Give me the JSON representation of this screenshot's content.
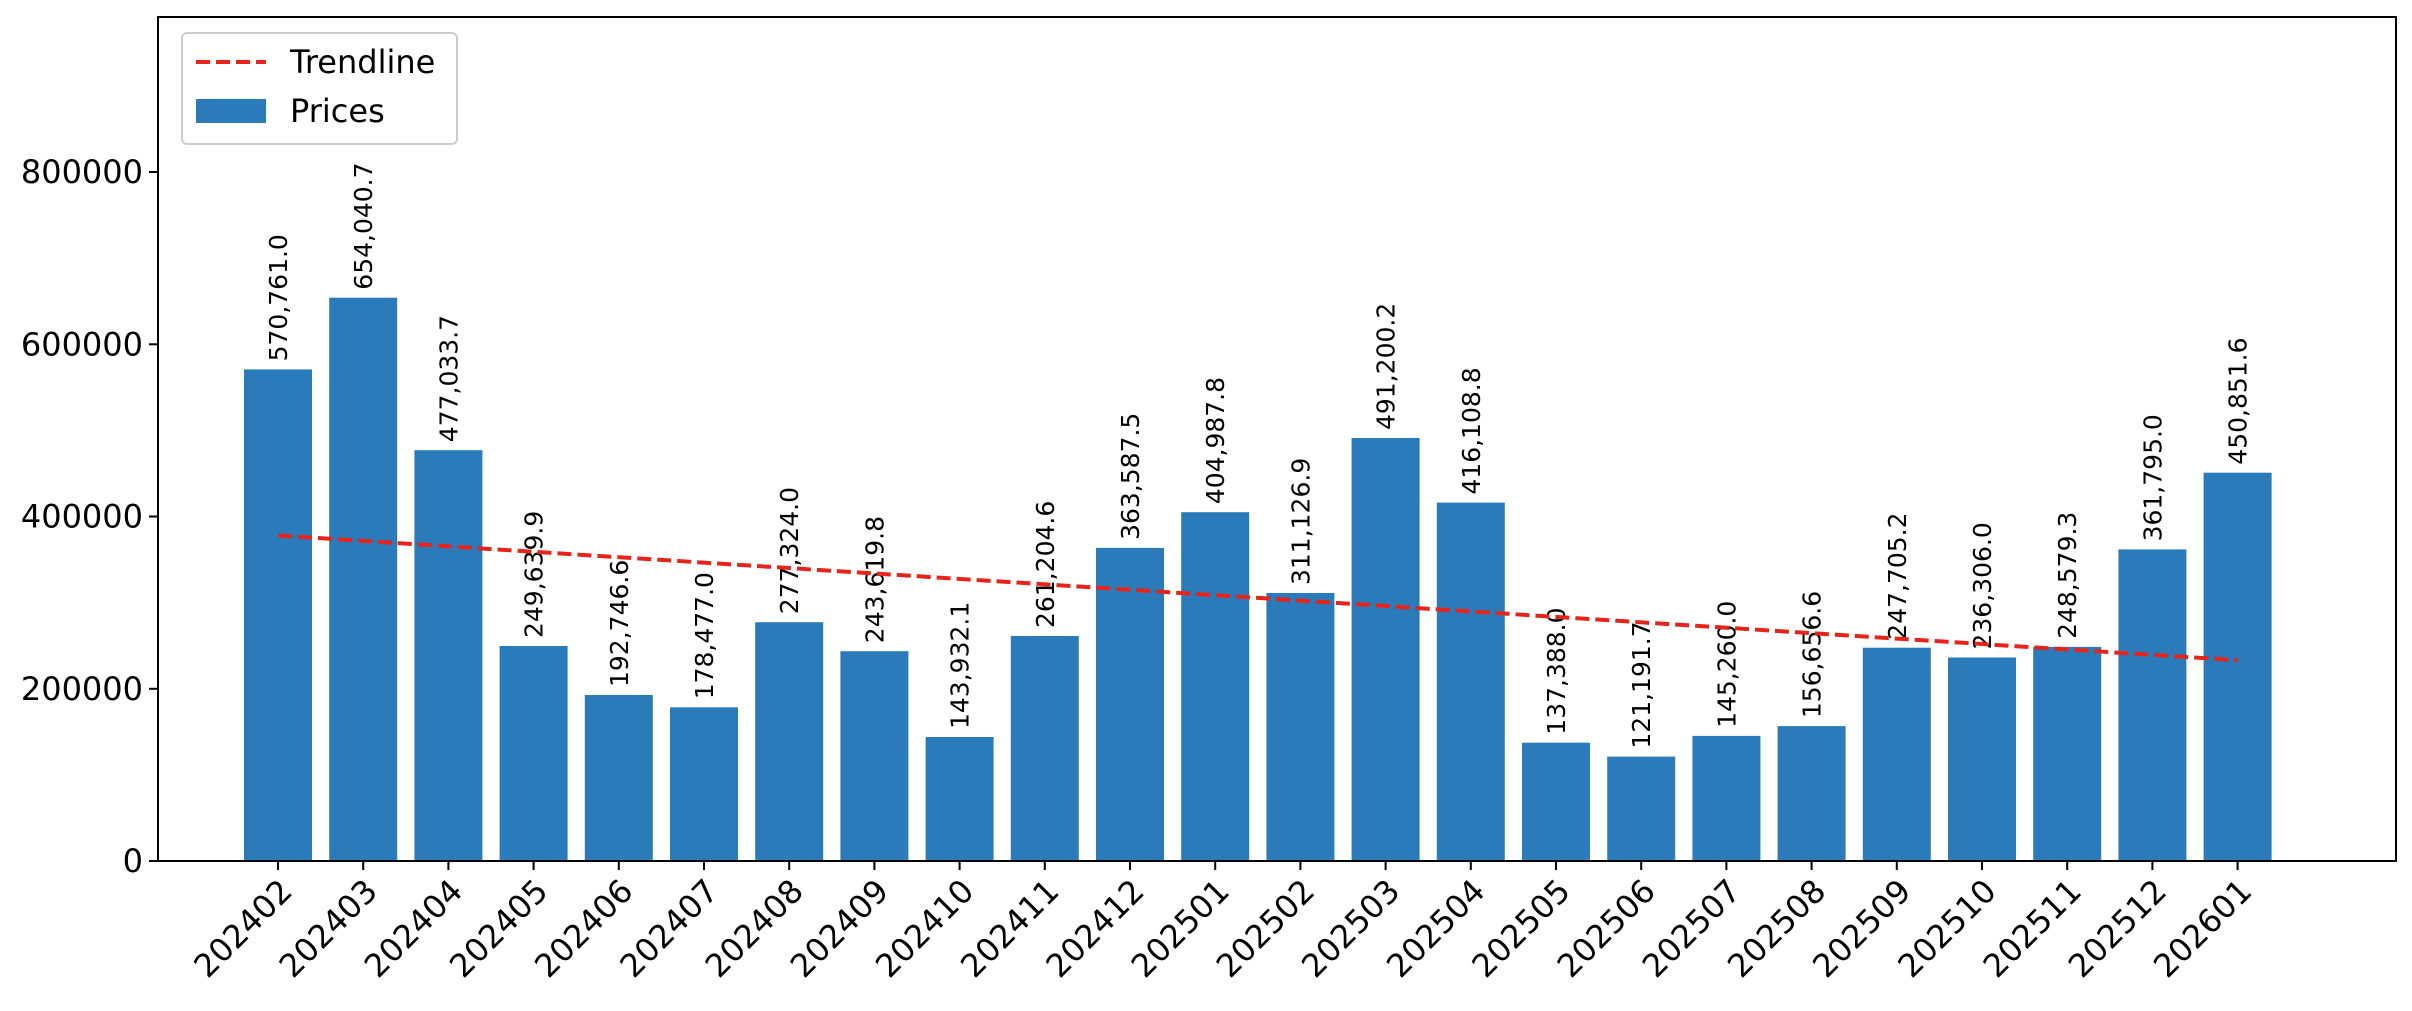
{
  "chart_data": {
    "type": "bar",
    "title": "",
    "xlabel": "",
    "ylabel": "",
    "categories": [
      "202402",
      "202403",
      "202404",
      "202405",
      "202406",
      "202407",
      "202408",
      "202409",
      "202410",
      "202411",
      "202412",
      "202501",
      "202502",
      "202503",
      "202504",
      "202505",
      "202506",
      "202507",
      "202508",
      "202509",
      "202510",
      "202511",
      "202512",
      "202601"
    ],
    "series": [
      {
        "name": "Prices",
        "type": "bar",
        "color": "#2b7bba",
        "values": [
          570761.0,
          654040.7,
          477033.7,
          249639.9,
          192746.6,
          178477.0,
          277324.0,
          243619.8,
          143932.1,
          261204.6,
          363587.5,
          404987.8,
          311126.9,
          491200.2,
          416108.8,
          137388.0,
          121191.7,
          145260.0,
          156656.6,
          247705.2,
          236306.0,
          248579.3,
          361795.0,
          450851.6
        ],
        "data_labels": [
          "570,761.0",
          "654,040.7",
          "477,033.7",
          "249,639.9",
          "192,746.6",
          "178,477.0",
          "277,324.0",
          "243,619.8",
          "143,932.1",
          "261,204.6",
          "363,587.5",
          "404,987.8",
          "311,126.9",
          "491,200.2",
          "416,108.8",
          "137,388.0",
          "121,191.7",
          "145,260.0",
          "156,656.6",
          "247,705.2",
          "236,306.0",
          "248,579.3",
          "361,795.0",
          "450,851.6"
        ]
      },
      {
        "name": "Trendline",
        "type": "line",
        "style": "dashed",
        "color": "#e8231a",
        "start_value": 378000,
        "end_value": 233000
      }
    ],
    "ylim": [
      0,
      980000
    ],
    "yticks": [
      0,
      200000,
      400000,
      600000,
      800000
    ],
    "ytick_labels": [
      "0",
      "200000",
      "400000",
      "600000",
      "800000"
    ],
    "grid": false,
    "legend": {
      "position": "top-left",
      "entries": [
        "Trendline",
        "Prices"
      ]
    }
  }
}
